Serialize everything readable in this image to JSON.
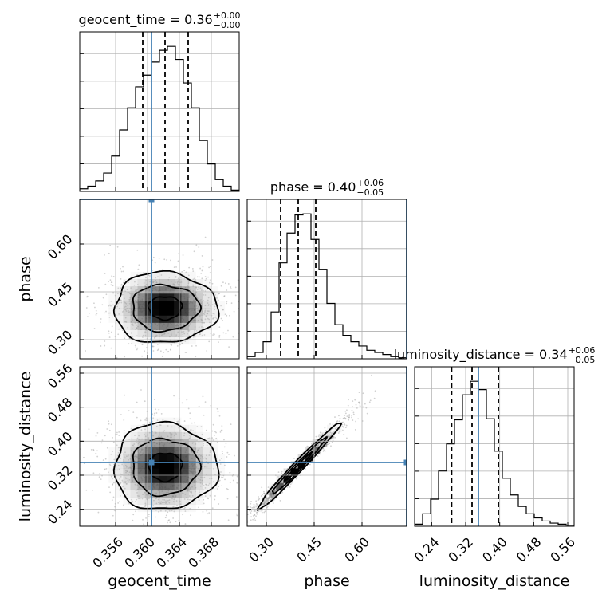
{
  "chart_data": {
    "type": "corner",
    "parameters": [
      "geocent_time",
      "phase",
      "luminosity_distance"
    ],
    "axis_labels": [
      "geocent_time",
      "phase",
      "luminosity_distance"
    ],
    "titles": [
      {
        "main": "geocent_time = 0.36",
        "plus": "+0.00",
        "minus": "−0.00"
      },
      {
        "main": "phase = 0.40",
        "plus": "+0.06",
        "minus": "−0.05"
      },
      {
        "main": "luminosity_distance = 0.34",
        "plus": "+0.06",
        "minus": "−0.05"
      }
    ],
    "ranges": [
      [
        0.3515,
        0.3715
      ],
      [
        0.24,
        0.74
      ],
      [
        0.2,
        0.575
      ]
    ],
    "ticks": [
      {
        "values": [
          0.356,
          0.36,
          0.364,
          0.368
        ],
        "labels": [
          "0.356",
          "0.360",
          "0.364",
          "0.368"
        ]
      },
      {
        "values": [
          0.3,
          0.45,
          0.6
        ],
        "labels": [
          "0.30",
          "0.45",
          "0.60"
        ]
      },
      {
        "values": [
          0.24,
          0.32,
          0.4,
          0.48,
          0.56
        ],
        "labels": [
          "0.24",
          "0.32",
          "0.40",
          "0.48",
          "0.56"
        ]
      }
    ],
    "truths": [
      0.3605,
      0.74,
      0.35
    ],
    "medians": [
      0.3622,
      0.4,
      0.335
    ],
    "quantiles": [
      [
        0.3594,
        0.3651
      ],
      [
        0.345,
        0.455
      ],
      [
        0.287,
        0.397
      ]
    ],
    "histograms": [
      {
        "bin_edges": [
          0.3515,
          0.3525,
          0.3535,
          0.3545,
          0.3555,
          0.3565,
          0.3575,
          0.3585,
          0.3595,
          0.3605,
          0.3615,
          0.3625,
          0.3635,
          0.3645,
          0.3655,
          0.3665,
          0.3675,
          0.3685,
          0.3695,
          0.3705,
          0.3715
        ],
        "counts": [
          2,
          4,
          8,
          14,
          27,
          47,
          64,
          80,
          89,
          99,
          108,
          111,
          101,
          83,
          64,
          39,
          21,
          9,
          4,
          1
        ]
      },
      {
        "bin_edges": [
          0.24,
          0.265,
          0.29,
          0.315,
          0.34,
          0.365,
          0.39,
          0.415,
          0.44,
          0.465,
          0.49,
          0.515,
          0.54,
          0.565,
          0.59,
          0.615,
          0.64,
          0.665,
          0.69,
          0.715,
          0.74
        ],
        "counts": [
          2,
          6,
          16,
          44,
          90,
          118,
          135,
          136,
          112,
          84,
          52,
          32,
          22,
          16,
          12,
          8,
          6,
          4,
          2,
          1
        ]
      },
      {
        "bin_edges": [
          0.2,
          0.21875,
          0.2375,
          0.25625,
          0.275,
          0.29375,
          0.3125,
          0.33125,
          0.35,
          0.36875,
          0.3875,
          0.40625,
          0.425,
          0.44375,
          0.4625,
          0.48125,
          0.5,
          0.51875,
          0.5375,
          0.55625,
          0.575
        ],
        "counts": [
          2,
          12,
          26,
          53,
          79,
          102,
          126,
          139,
          131,
          103,
          72,
          46,
          30,
          19,
          12,
          8,
          5,
          3,
          2,
          1
        ]
      }
    ],
    "pairs": [
      {
        "x": 0,
        "y": 1,
        "center": [
          0.3622,
          0.4
        ],
        "sigma": [
          0.0035,
          0.06
        ],
        "rho": 0.0
      },
      {
        "x": 0,
        "y": 2,
        "center": [
          0.3622,
          0.34
        ],
        "sigma": [
          0.0035,
          0.055
        ],
        "rho": 0.0
      },
      {
        "x": 1,
        "y": 2,
        "center": [
          0.4,
          0.34
        ],
        "sigma": [
          0.07,
          0.055
        ],
        "rho": 0.985
      }
    ],
    "grid": true,
    "truth_color": "#4682b4",
    "contour_color": "#000000"
  }
}
